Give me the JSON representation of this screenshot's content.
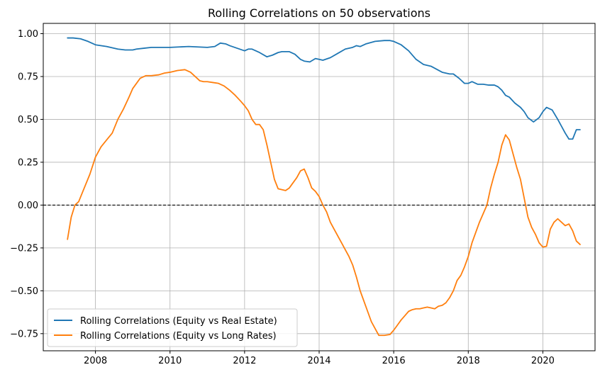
{
  "chart_data": {
    "type": "line",
    "title": "Rolling Correlations on 50 observations",
    "xlabel": "",
    "ylabel": "",
    "xlim": [
      2006.6,
      2021.4
    ],
    "ylim": [
      -0.85,
      1.06
    ],
    "x_ticks": [
      2008,
      2010,
      2012,
      2014,
      2016,
      2018,
      2020
    ],
    "y_ticks": [
      -0.75,
      -0.5,
      -0.25,
      0.0,
      0.25,
      0.5,
      0.75,
      1.0
    ],
    "x_tick_labels": [
      "2008",
      "2010",
      "2012",
      "2014",
      "2016",
      "2018",
      "2020"
    ],
    "y_tick_labels": [
      "−0.75",
      "−0.50",
      "−0.25",
      "0.00",
      "0.25",
      "0.50",
      "0.75",
      "1.00"
    ],
    "grid": true,
    "legend_position": "lower-left",
    "reference_line": {
      "y": 0.0,
      "style": "dashed",
      "color": "#000000"
    },
    "series": [
      {
        "name": "Rolling Correlations (Equity vs Real Estate)",
        "color": "#1f77b4",
        "x": [
          2007.25,
          2007.4,
          2007.6,
          2007.8,
          2008.0,
          2008.3,
          2008.6,
          2008.8,
          2009.0,
          2009.1,
          2009.3,
          2009.5,
          2010.0,
          2010.5,
          2011.0,
          2011.2,
          2011.35,
          2011.5,
          2011.6,
          2011.8,
          2012.0,
          2012.1,
          2012.2,
          2012.4,
          2012.6,
          2012.75,
          2012.9,
          2013.0,
          2013.2,
          2013.35,
          2013.5,
          2013.6,
          2013.75,
          2013.9,
          2014.0,
          2014.1,
          2014.3,
          2014.5,
          2014.7,
          2014.9,
          2015.0,
          2015.1,
          2015.25,
          2015.5,
          2015.75,
          2015.9,
          2016.0,
          2016.2,
          2016.4,
          2016.6,
          2016.8,
          2017.0,
          2017.3,
          2017.5,
          2017.6,
          2017.75,
          2017.9,
          2018.0,
          2018.1,
          2018.25,
          2018.4,
          2018.55,
          2018.7,
          2018.8,
          2018.9,
          2019.0,
          2019.1,
          2019.25,
          2019.4,
          2019.5,
          2019.6,
          2019.75,
          2019.9,
          2020.0,
          2020.1,
          2020.25,
          2020.4,
          2020.5,
          2020.6,
          2020.7,
          2020.8,
          2020.9,
          2021.0
        ],
        "values": [
          0.975,
          0.975,
          0.97,
          0.955,
          0.935,
          0.925,
          0.91,
          0.905,
          0.905,
          0.91,
          0.915,
          0.92,
          0.92,
          0.925,
          0.92,
          0.925,
          0.945,
          0.94,
          0.93,
          0.915,
          0.9,
          0.91,
          0.91,
          0.89,
          0.865,
          0.875,
          0.89,
          0.895,
          0.895,
          0.88,
          0.85,
          0.84,
          0.835,
          0.855,
          0.85,
          0.845,
          0.86,
          0.885,
          0.91,
          0.92,
          0.93,
          0.925,
          0.94,
          0.955,
          0.96,
          0.96,
          0.955,
          0.935,
          0.9,
          0.85,
          0.82,
          0.81,
          0.775,
          0.765,
          0.765,
          0.74,
          0.71,
          0.71,
          0.72,
          0.705,
          0.705,
          0.7,
          0.7,
          0.69,
          0.67,
          0.64,
          0.63,
          0.595,
          0.57,
          0.545,
          0.51,
          0.485,
          0.51,
          0.545,
          0.57,
          0.555,
          0.5,
          0.46,
          0.42,
          0.385,
          0.385,
          0.44,
          0.44
        ]
      },
      {
        "name": "Rolling Correlations (Equity vs Long Rates)",
        "color": "#ff7f0e",
        "x": [
          2007.25,
          2007.35,
          2007.45,
          2007.55,
          2007.7,
          2007.85,
          2008.0,
          2008.15,
          2008.3,
          2008.45,
          2008.6,
          2008.75,
          2008.9,
          2009.0,
          2009.1,
          2009.2,
          2009.35,
          2009.5,
          2009.7,
          2009.85,
          2010.0,
          2010.2,
          2010.4,
          2010.55,
          2010.7,
          2010.8,
          2010.9,
          2011.0,
          2011.15,
          2011.3,
          2011.45,
          2011.6,
          2011.75,
          2011.9,
          2012.0,
          2012.1,
          2012.2,
          2012.3,
          2012.4,
          2012.5,
          2012.6,
          2012.7,
          2012.8,
          2012.9,
          2013.0,
          2013.1,
          2013.2,
          2013.3,
          2013.4,
          2013.5,
          2013.6,
          2013.7,
          2013.8,
          2013.9,
          2014.0,
          2014.1,
          2014.2,
          2014.3,
          2014.4,
          2014.5,
          2014.6,
          2014.7,
          2014.8,
          2014.9,
          2015.0,
          2015.1,
          2015.2,
          2015.3,
          2015.4,
          2015.5,
          2015.6,
          2015.75,
          2015.9,
          2016.0,
          2016.1,
          2016.2,
          2016.3,
          2016.4,
          2016.5,
          2016.6,
          2016.7,
          2016.8,
          2016.9,
          2017.0,
          2017.1,
          2017.2,
          2017.3,
          2017.4,
          2017.5,
          2017.6,
          2017.7,
          2017.8,
          2017.9,
          2018.0,
          2018.1,
          2018.2,
          2018.3,
          2018.4,
          2018.5,
          2018.6,
          2018.7,
          2018.8,
          2018.9,
          2019.0,
          2019.1,
          2019.2,
          2019.3,
          2019.4,
          2019.5,
          2019.6,
          2019.7,
          2019.8,
          2019.9,
          2020.0,
          2020.1,
          2020.2,
          2020.3,
          2020.4,
          2020.5,
          2020.6,
          2020.7,
          2020.8,
          2020.9,
          2021.0
        ],
        "values": [
          -0.2,
          -0.07,
          0.0,
          0.02,
          0.1,
          0.18,
          0.28,
          0.34,
          0.38,
          0.42,
          0.5,
          0.56,
          0.63,
          0.68,
          0.71,
          0.74,
          0.755,
          0.755,
          0.76,
          0.77,
          0.775,
          0.785,
          0.79,
          0.775,
          0.745,
          0.725,
          0.72,
          0.72,
          0.715,
          0.71,
          0.695,
          0.67,
          0.64,
          0.605,
          0.58,
          0.55,
          0.5,
          0.47,
          0.47,
          0.44,
          0.35,
          0.25,
          0.15,
          0.095,
          0.09,
          0.085,
          0.1,
          0.13,
          0.16,
          0.2,
          0.21,
          0.16,
          0.1,
          0.08,
          0.05,
          0.0,
          -0.04,
          -0.1,
          -0.14,
          -0.18,
          -0.22,
          -0.26,
          -0.3,
          -0.35,
          -0.42,
          -0.5,
          -0.56,
          -0.62,
          -0.68,
          -0.72,
          -0.76,
          -0.76,
          -0.755,
          -0.73,
          -0.7,
          -0.67,
          -0.645,
          -0.62,
          -0.61,
          -0.605,
          -0.605,
          -0.6,
          -0.595,
          -0.6,
          -0.605,
          -0.59,
          -0.585,
          -0.57,
          -0.54,
          -0.5,
          -0.44,
          -0.41,
          -0.36,
          -0.3,
          -0.22,
          -0.16,
          -0.1,
          -0.05,
          0.0,
          0.1,
          0.18,
          0.25,
          0.35,
          0.41,
          0.38,
          0.3,
          0.22,
          0.15,
          0.04,
          -0.07,
          -0.13,
          -0.17,
          -0.22,
          -0.245,
          -0.24,
          -0.14,
          -0.1,
          -0.08,
          -0.1,
          -0.12,
          -0.11,
          -0.15,
          -0.21,
          -0.23
        ]
      }
    ]
  }
}
